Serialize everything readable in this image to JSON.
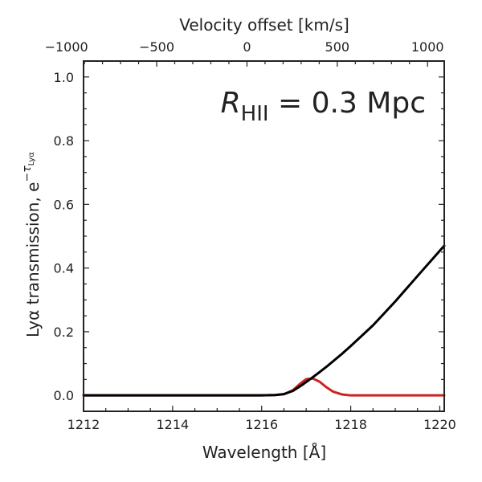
{
  "chart_data": {
    "type": "line",
    "xlabel": "Wavelength [Å]",
    "x2label": "Velocity offset [km/s]",
    "ylabel_main": "Lyα transmission, e",
    "ylabel_exp": "−τ",
    "ylabel_exp_sub": "Lyα",
    "annotation": {
      "symbol": "R",
      "subscript": "HII",
      "rest": " = 0.3 Mpc"
    },
    "xlim": [
      1212,
      1220.1
    ],
    "ylim": [
      -0.05,
      1.05
    ],
    "xticks": [
      1212,
      1214,
      1216,
      1218,
      1220
    ],
    "yticks": [
      0.0,
      0.2,
      0.4,
      0.6,
      0.8,
      1.0
    ],
    "x2ticks": [
      {
        "value": -1000,
        "label": "−1000"
      },
      {
        "value": -500,
        "label": "−500"
      },
      {
        "value": 0,
        "label": "0"
      },
      {
        "value": 500,
        "label": "500"
      },
      {
        "value": 1000,
        "label": "1000"
      }
    ],
    "velocity_reference_A": 1215.67,
    "series": [
      {
        "color": "#000000",
        "x": [
          1212,
          1213,
          1214,
          1215,
          1216,
          1216.3,
          1216.5,
          1216.7,
          1216.9,
          1217.1,
          1217.3,
          1217.5,
          1217.8,
          1218.0,
          1218.5,
          1219.0,
          1219.5,
          1220.1
        ],
        "y": [
          0,
          0,
          0,
          0,
          0,
          0.001,
          0.004,
          0.014,
          0.032,
          0.052,
          0.073,
          0.095,
          0.13,
          0.155,
          0.22,
          0.295,
          0.375,
          0.47
        ]
      },
      {
        "color": "#cc2222",
        "x": [
          1212,
          1213,
          1214,
          1215,
          1216,
          1216.3,
          1216.5,
          1216.7,
          1216.85,
          1217.0,
          1217.15,
          1217.3,
          1217.45,
          1217.6,
          1217.8,
          1218.0,
          1219.0,
          1220.1
        ],
        "y": [
          0,
          0,
          0,
          0,
          0,
          0.001,
          0.004,
          0.016,
          0.035,
          0.051,
          0.053,
          0.043,
          0.026,
          0.012,
          0.003,
          0.0,
          0.0,
          0.0
        ]
      }
    ]
  }
}
